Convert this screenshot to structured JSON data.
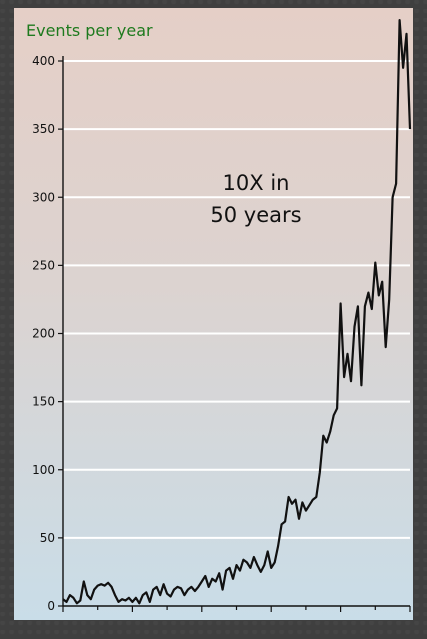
{
  "chart_data": {
    "type": "line",
    "title": "Events per year",
    "xlabel": "",
    "ylabel": "",
    "xlim": [
      1900,
      2000
    ],
    "ylim": [
      0,
      420
    ],
    "x_ticks": [
      1900,
      1920,
      1940,
      1960,
      1980,
      2000
    ],
    "y_ticks": [
      0,
      50,
      100,
      150,
      200,
      250,
      300,
      350,
      400
    ],
    "grid": "horizontal",
    "annotation": [
      "10X in",
      "50 years"
    ],
    "series": [
      {
        "color": "#111111",
        "x": [
          1900,
          1901,
          1902,
          1903,
          1904,
          1905,
          1906,
          1907,
          1908,
          1909,
          1910,
          1911,
          1912,
          1913,
          1914,
          1915,
          1916,
          1917,
          1918,
          1919,
          1920,
          1921,
          1922,
          1923,
          1924,
          1925,
          1926,
          1927,
          1928,
          1929,
          1930,
          1931,
          1932,
          1933,
          1934,
          1935,
          1936,
          1937,
          1938,
          1939,
          1940,
          1941,
          1942,
          1943,
          1944,
          1945,
          1946,
          1947,
          1948,
          1949,
          1950,
          1951,
          1952,
          1953,
          1954,
          1955,
          1956,
          1957,
          1958,
          1959,
          1960,
          1961,
          1962,
          1963,
          1964,
          1965,
          1966,
          1967,
          1968,
          1969,
          1970,
          1971,
          1972,
          1973,
          1974,
          1975,
          1976,
          1977,
          1978,
          1979,
          1980,
          1981,
          1982,
          1983,
          1984,
          1985,
          1986,
          1987,
          1988,
          1989,
          1990,
          1991,
          1992,
          1993,
          1994,
          1995,
          1996,
          1997,
          1998,
          1999,
          2000
        ],
        "y": [
          5,
          3,
          8,
          6,
          2,
          4,
          18,
          8,
          5,
          12,
          15,
          16,
          15,
          17,
          14,
          8,
          3,
          5,
          4,
          6,
          3,
          6,
          2,
          8,
          10,
          3,
          12,
          14,
          8,
          16,
          9,
          7,
          12,
          14,
          13,
          8,
          12,
          14,
          11,
          14,
          18,
          22,
          14,
          20,
          18,
          24,
          12,
          26,
          28,
          20,
          30,
          26,
          34,
          32,
          28,
          36,
          30,
          25,
          30,
          40,
          28,
          32,
          44,
          60,
          62,
          80,
          75,
          78,
          64,
          76,
          70,
          74,
          78,
          80,
          98,
          125,
          120,
          128,
          140,
          145,
          222,
          168,
          185,
          165,
          205,
          220,
          162,
          220,
          230,
          218,
          252,
          228,
          238,
          190,
          225,
          300,
          310,
          430,
          395,
          420,
          350
        ]
      }
    ]
  }
}
